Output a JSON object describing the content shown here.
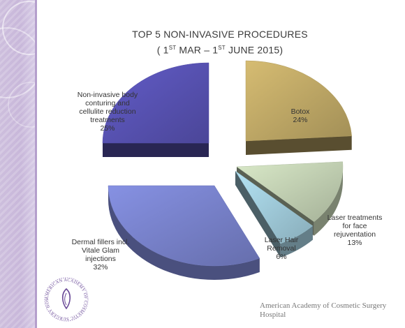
{
  "chart_data": {
    "type": "pie",
    "title_line1": "TOP 5 NON-INVASIVE PROCEDURES",
    "title_line2": {
      "open": "( 1",
      "sup1": "ST",
      "mid": " MAR – 1",
      "sup2": "ST",
      "close": " JUNE 2015)"
    },
    "slices": [
      {
        "label_lines": [
          "Botox"
        ],
        "pct_text": "24%",
        "value": 24,
        "color": "#c6ae6a"
      },
      {
        "label_lines": [
          "Laser treatments",
          "for face",
          "rejuventation"
        ],
        "pct_text": "13%",
        "value": 13,
        "color": "#c9d8b9"
      },
      {
        "label_lines": [
          "Laser Hair",
          "Removal"
        ],
        "pct_text": "6%",
        "value": 6,
        "color": "#a6d2e2"
      },
      {
        "label_lines": [
          "Dermal fillers incl.",
          "Vitale Glam",
          "injections"
        ],
        "pct_text": "32%",
        "value": 32,
        "color": "#7c86d2"
      },
      {
        "label_lines": [
          "Non-invasive body",
          "conturing and",
          "cellulite reduction",
          "treatments"
        ],
        "pct_text": "25%",
        "value": 25,
        "color": "#5b55b9"
      }
    ]
  },
  "logo": {
    "text": "AMERICAN ACADEMY OF COSMETIC SURGERY HOSPITAL",
    "color": "#6a4a97"
  },
  "footer": {
    "org_line1": "American Academy of Cosmetic Surgery",
    "org_line2": "Hospital"
  }
}
